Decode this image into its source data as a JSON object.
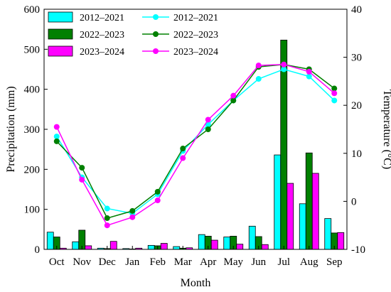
{
  "chart_data": {
    "type": "bar",
    "xlabel": "Month",
    "ylabel_left": "Precipitation (mm)",
    "ylabel_right": "Temperature (°C)",
    "categories": [
      "Oct",
      "Nov",
      "Dec",
      "Jan",
      "Feb",
      "Mar",
      "Apr",
      "May",
      "Jun",
      "Jul",
      "Aug",
      "Sep"
    ],
    "ylim_left": [
      0,
      600
    ],
    "yticks_left": [
      0,
      100,
      200,
      300,
      400,
      500,
      600
    ],
    "ylim_right": [
      -10,
      40
    ],
    "yticks_right": [
      -10,
      0,
      10,
      20,
      30,
      40
    ],
    "grid": false,
    "legend_position": "top-left",
    "bar_series": [
      {
        "name": "2012–2021",
        "color": "#00ffff",
        "values": [
          43,
          19,
          3,
          2,
          10,
          7,
          37,
          31,
          58,
          236,
          114,
          77
        ]
      },
      {
        "name": "2022–2023",
        "color": "#008000",
        "values": [
          31,
          48,
          2,
          1,
          9,
          3,
          33,
          33,
          32,
          523,
          241,
          41
        ]
      },
      {
        "name": "2023–2024",
        "color": "#ff00ff",
        "values": [
          3,
          9,
          20,
          3,
          15,
          4,
          23,
          13,
          12,
          165,
          190,
          42
        ]
      }
    ],
    "line_series": [
      {
        "name": "2012–2021",
        "color": "#00ffff",
        "values": [
          13.5,
          5.0,
          -1.5,
          -2.5,
          1.5,
          10.5,
          16.0,
          21.0,
          25.5,
          27.5,
          26.0,
          21.0
        ]
      },
      {
        "name": "2022–2023",
        "color": "#008000",
        "values": [
          12.5,
          7.0,
          -3.5,
          -2.0,
          2.0,
          11.0,
          15.0,
          21.0,
          28.0,
          28.5,
          27.5,
          23.5
        ]
      },
      {
        "name": "2023–2024",
        "color": "#ff00ff",
        "values": [
          15.5,
          4.5,
          -5.0,
          -3.3,
          0.2,
          9.0,
          17.0,
          22.0,
          28.3,
          28.5,
          27.0,
          22.5
        ]
      }
    ]
  }
}
